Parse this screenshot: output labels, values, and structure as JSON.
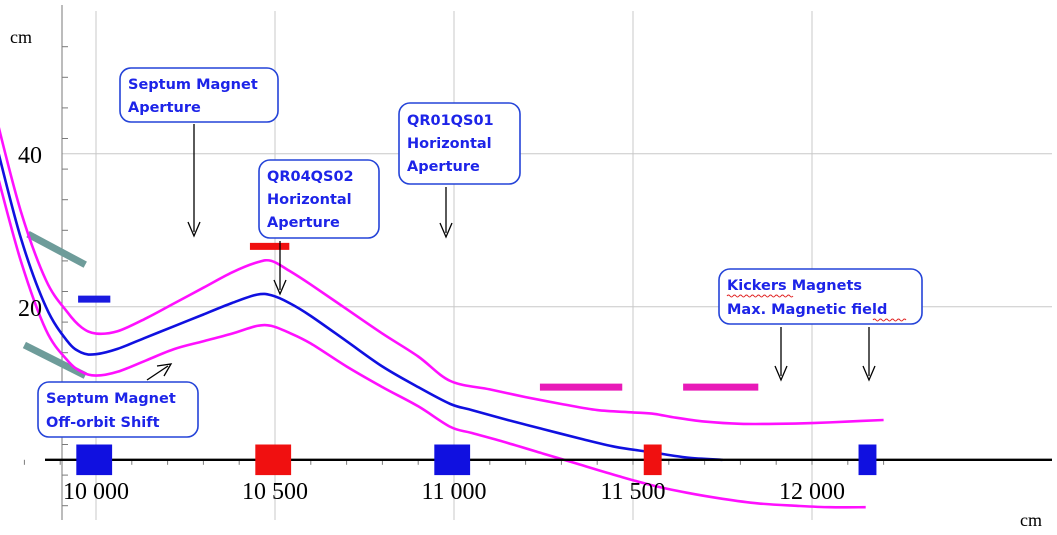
{
  "chart_data": {
    "type": "line",
    "title": "",
    "xlabel": "cm",
    "ylabel": "cm",
    "xlim": [
      9630,
      12200
    ],
    "ylim": [
      -8,
      58
    ],
    "x_ticks": [
      10000,
      10500,
      11000,
      11500,
      12000
    ],
    "x_tick_labels": [
      "10 000",
      "10 500",
      "11 000",
      "11 500",
      "12 000"
    ],
    "y_ticks": [
      20,
      40
    ],
    "y_tick_labels": [
      "20",
      "40"
    ],
    "grid": true,
    "series": [
      {
        "color": "#1010e0",
        "x": [
          9660,
          9720,
          9790,
          9860,
          9920,
          9960,
          10000,
          10060,
          10140,
          10220,
          10300,
          10380,
          10450,
          10490,
          10540,
          10600,
          10700,
          10800,
          10900,
          10990,
          11050,
          11150,
          11250,
          11350,
          11450,
          11550,
          11650,
          11750
        ],
        "y": [
          52.5,
          41.5,
          29.0,
          20.0,
          15.5,
          14.0,
          13.8,
          14.5,
          16.0,
          17.5,
          19.0,
          20.5,
          21.6,
          21.5,
          20.5,
          18.8,
          15.5,
          12.2,
          9.5,
          7.3,
          6.5,
          5.2,
          4.0,
          2.8,
          1.7,
          1.0,
          0.3,
          0.0
        ]
      },
      {
        "color": "#ff10ff",
        "x": [
          9660,
          9720,
          9790,
          9860,
          9920,
          9960,
          10000,
          10060,
          10140,
          10220,
          10300,
          10380,
          10450,
          10490,
          10540,
          10600,
          10700,
          10800,
          10900,
          10990,
          11100,
          11200,
          11300,
          11400,
          11500,
          11560,
          11620,
          11700,
          11800,
          11900,
          12000,
          12100,
          12200
        ],
        "y": [
          56.5,
          45.0,
          32.5,
          23.5,
          19.3,
          17.3,
          16.5,
          16.8,
          18.5,
          20.5,
          22.5,
          24.5,
          25.8,
          26.0,
          24.7,
          22.9,
          19.7,
          16.5,
          13.5,
          10.3,
          9.2,
          8.2,
          7.3,
          6.5,
          6.2,
          6.0,
          5.5,
          5.0,
          4.7,
          4.7,
          4.8,
          5.0,
          5.2
        ]
      },
      {
        "color": "#ff10ff",
        "x": [
          9660,
          9720,
          9790,
          9860,
          9920,
          9960,
          10000,
          10060,
          10140,
          10220,
          10300,
          10380,
          10450,
          10490,
          10540,
          10600,
          10700,
          10800,
          10900,
          10990,
          11050,
          11150,
          11250,
          11350,
          11450,
          11550,
          11650,
          11750,
          11850,
          11950,
          12050,
          12150
        ],
        "y": [
          48.5,
          38.0,
          26.0,
          17.0,
          13.0,
          11.5,
          11.0,
          11.5,
          13.0,
          14.5,
          15.5,
          16.5,
          17.5,
          17.5,
          16.6,
          15.2,
          12.2,
          9.5,
          7.0,
          4.3,
          3.5,
          2.2,
          0.8,
          -0.6,
          -2.0,
          -3.3,
          -4.3,
          -5.1,
          -5.7,
          -6.0,
          -6.2,
          -6.2
        ]
      }
    ],
    "apertures": [
      {
        "name": "Septum Magnet Aperture",
        "color": "#6e9c9a",
        "x": [
          9810,
          9970
        ],
        "y": [
          29.5,
          25.5
        ]
      },
      {
        "name": "Septum Magnet Off-orbit Shift",
        "color": "#6e9c9a",
        "x": [
          9800,
          9970
        ],
        "y": [
          15.0,
          11.0
        ]
      },
      {
        "name": "QR04QS02 Horizontal Aperture",
        "color": "#1a1ae0",
        "x": [
          9950,
          10040
        ],
        "y": [
          21.0,
          21.0
        ]
      },
      {
        "name": "QR01QS01 Horizontal Aperture",
        "color": "#f01010",
        "x": [
          10430,
          10540
        ],
        "y": [
          27.9,
          27.9
        ]
      },
      {
        "name": "Kickers Magnets Max. Magnetic field 1",
        "color": "#e81ab8",
        "x": [
          11240,
          11470
        ],
        "y": [
          9.5,
          9.5
        ]
      },
      {
        "name": "Kickers Magnets Max. Magnetic field 2",
        "color": "#e81ab8",
        "x": [
          11640,
          11850
        ],
        "y": [
          9.5,
          9.5
        ]
      }
    ],
    "markers": [
      {
        "color": "#f01010",
        "x": 9640,
        "width": 50,
        "height": 4.0
      },
      {
        "color": "#1010e0",
        "x": 9995,
        "width": 100,
        "height": 4.0
      },
      {
        "color": "#f01010",
        "x": 10495,
        "width": 100,
        "height": 4.0
      },
      {
        "color": "#1010e0",
        "x": 10995,
        "width": 100,
        "height": 4.0
      },
      {
        "color": "#f01010",
        "x": 11555,
        "width": 50,
        "height": 4.0
      },
      {
        "color": "#1010e0",
        "x": 12155,
        "width": 50,
        "height": 4.0
      }
    ],
    "annotations": [
      {
        "lines": [
          "Septum Magnet",
          "Aperture"
        ]
      },
      {
        "lines": [
          "QR04QS02",
          "Horizontal",
          "Aperture"
        ]
      },
      {
        "lines": [
          "QR01QS01",
          "Horizontal",
          "Aperture"
        ]
      },
      {
        "lines": [
          "Kickers Magnets",
          "Max. Magnetic field"
        ]
      },
      {
        "lines": [
          "Septum Magnet",
          "Off-orbit Shift"
        ]
      }
    ]
  }
}
